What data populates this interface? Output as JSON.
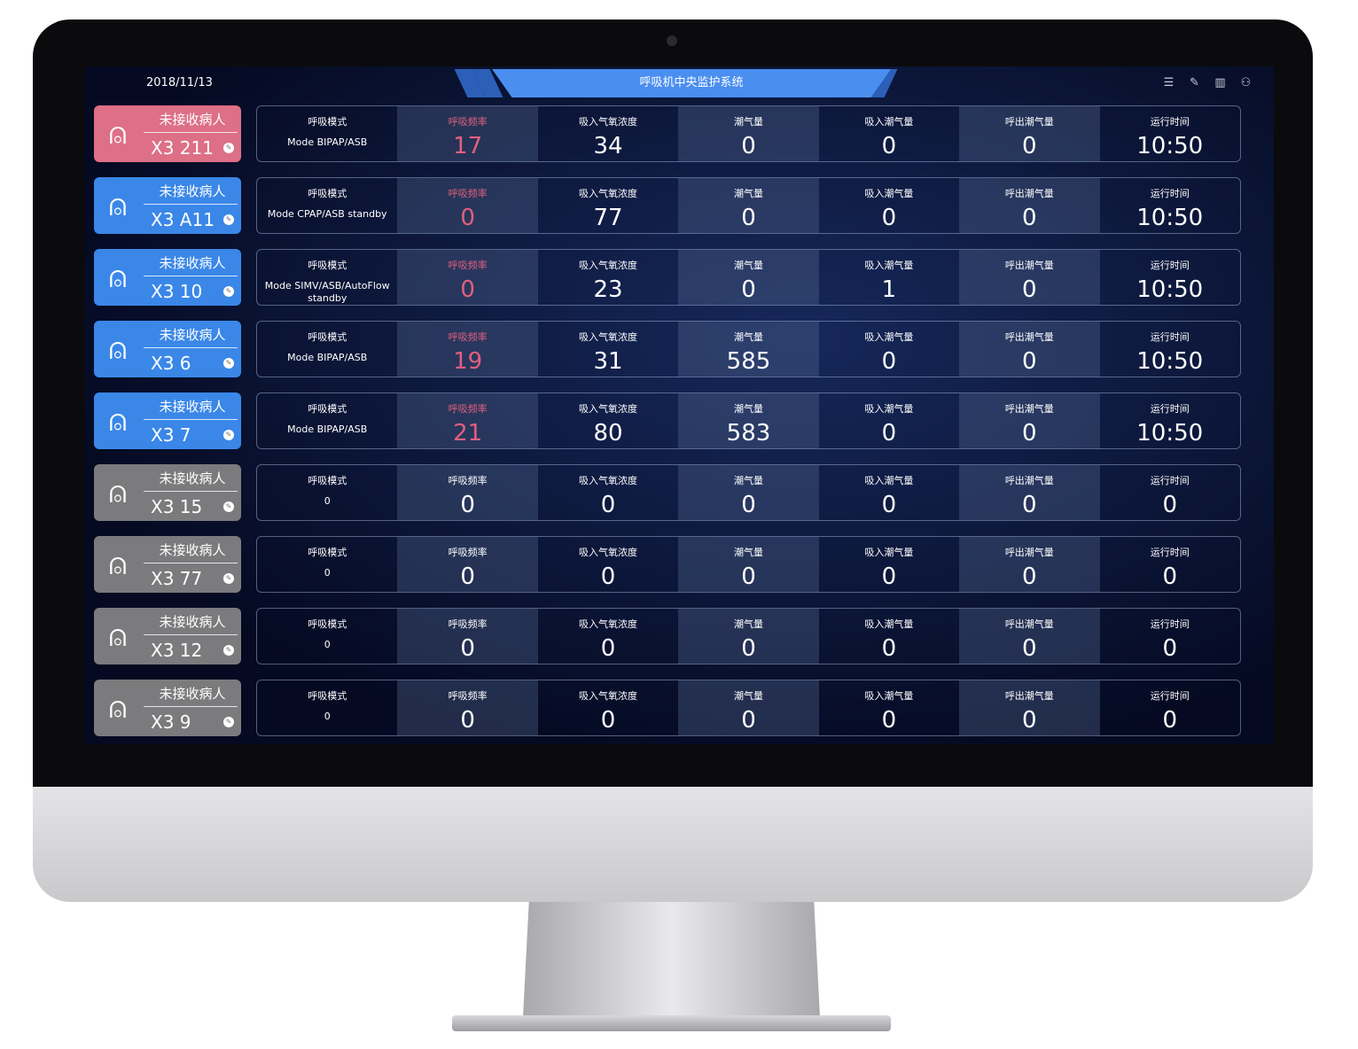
{
  "header": {
    "date": "2018/11/13",
    "title": "呼吸机中央监护系统",
    "icons": [
      "menu-list-icon",
      "edit-icon",
      "layout-icon",
      "user-icon"
    ]
  },
  "colors": {
    "alert": "#dd6f86",
    "active": "#3a87e8",
    "idle": "#7b7b7d",
    "accent": "#e0607e"
  },
  "labels": {
    "mode": "呼吸模式",
    "rate": "呼吸频率",
    "o2": "吸入气氧浓度",
    "tidal": "潮气量",
    "in_tidal": "吸入潮气量",
    "out_tidal": "呼出潮气量",
    "runtime": "运行时间"
  },
  "rows": [
    {
      "status": "alert",
      "name": "未接收病人",
      "bed": "X3 211",
      "mode": "Mode BIPAP/ASB",
      "rate": "17",
      "o2": "34",
      "tidal": "0",
      "in_tidal": "0",
      "out_tidal": "0",
      "runtime": "10:50"
    },
    {
      "status": "active",
      "name": "未接收病人",
      "bed": "X3 A11",
      "mode": "Mode CPAP/ASB standby",
      "rate": "0",
      "o2": "77",
      "tidal": "0",
      "in_tidal": "0",
      "out_tidal": "0",
      "runtime": "10:50"
    },
    {
      "status": "active",
      "name": "未接收病人",
      "bed": "X3 10",
      "mode": "Mode SIMV/ASB/AutoFlow standby",
      "rate": "0",
      "o2": "23",
      "tidal": "0",
      "in_tidal": "1",
      "out_tidal": "0",
      "runtime": "10:50"
    },
    {
      "status": "active",
      "name": "未接收病人",
      "bed": "X3 6",
      "mode": "Mode BIPAP/ASB",
      "rate": "19",
      "o2": "31",
      "tidal": "585",
      "in_tidal": "0",
      "out_tidal": "0",
      "runtime": "10:50"
    },
    {
      "status": "active",
      "name": "未接收病人",
      "bed": "X3 7",
      "mode": "Mode BIPAP/ASB",
      "rate": "21",
      "o2": "80",
      "tidal": "583",
      "in_tidal": "0",
      "out_tidal": "0",
      "runtime": "10:50"
    },
    {
      "status": "idle",
      "name": "未接收病人",
      "bed": "X3 15",
      "mode": "0",
      "rate": "0",
      "o2": "0",
      "tidal": "0",
      "in_tidal": "0",
      "out_tidal": "0",
      "runtime": "0"
    },
    {
      "status": "idle",
      "name": "未接收病人",
      "bed": "X3 77",
      "mode": "0",
      "rate": "0",
      "o2": "0",
      "tidal": "0",
      "in_tidal": "0",
      "out_tidal": "0",
      "runtime": "0"
    },
    {
      "status": "idle",
      "name": "未接收病人",
      "bed": "X3 12",
      "mode": "0",
      "rate": "0",
      "o2": "0",
      "tidal": "0",
      "in_tidal": "0",
      "out_tidal": "0",
      "runtime": "0"
    },
    {
      "status": "idle",
      "name": "未接收病人",
      "bed": "X3 9",
      "mode": "0",
      "rate": "0",
      "o2": "0",
      "tidal": "0",
      "in_tidal": "0",
      "out_tidal": "0",
      "runtime": "0"
    }
  ]
}
